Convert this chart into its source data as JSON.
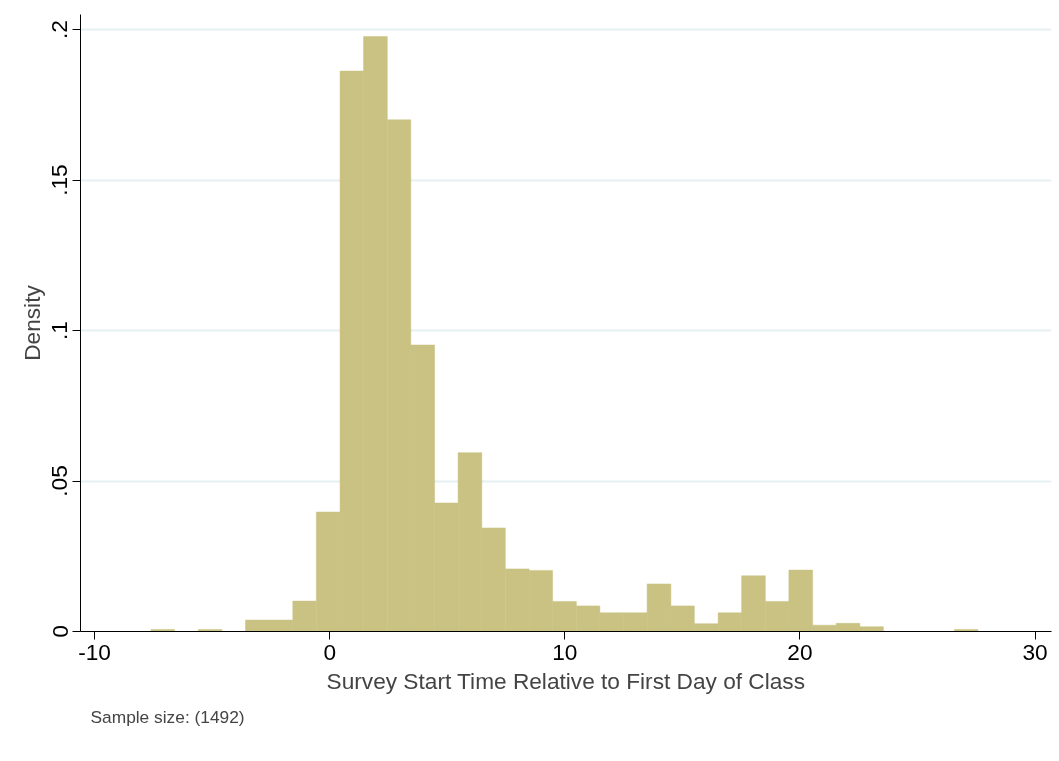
{
  "chart_data": {
    "type": "histogram",
    "xlabel": "Survey Start Time Relative to First Day of Class",
    "ylabel": "Density",
    "annotations": [
      "Sample size: (1492)"
    ],
    "bins": [
      -7.6,
      -6.6,
      -5.59,
      -4.59,
      -3.58,
      -2.58,
      -1.57,
      -0.57,
      0.44,
      1.44,
      2.45,
      3.45,
      4.46,
      5.46,
      6.47,
      7.47,
      8.48,
      9.48,
      10.49,
      11.49,
      12.5,
      13.5,
      14.51,
      15.51,
      16.52,
      17.52,
      18.53,
      19.53,
      20.54,
      21.54,
      22.55,
      23.55,
      24.56,
      25.56,
      26.57,
      27.57
    ],
    "values": [
      0.0007,
      0,
      0.0007,
      0,
      0.0038,
      0.0038,
      0.0101,
      0.0397,
      0.1862,
      0.1977,
      0.17,
      0.0952,
      0.0427,
      0.0594,
      0.0344,
      0.0208,
      0.0203,
      0.01,
      0.0085,
      0.0062,
      0.0062,
      0.0158,
      0.0085,
      0.0026,
      0.0062,
      0.0185,
      0.01,
      0.0204,
      0.0021,
      0.0027,
      0.0016,
      0,
      0,
      0,
      0.0007
    ],
    "color": "#c9c283",
    "xlim": [
      -10.6,
      30.7
    ],
    "ylim": [
      0,
      0.205
    ],
    "xticks": [
      -10,
      0,
      10,
      20,
      30
    ],
    "yticks": [
      0,
      {
        "value": 0.05,
        "label": ".05"
      },
      {
        "value": 0.1,
        "label": ".1"
      },
      {
        "value": 0.15,
        "label": ".15"
      },
      {
        "value": 0.2,
        "label": ".2"
      }
    ],
    "grid": "y"
  }
}
